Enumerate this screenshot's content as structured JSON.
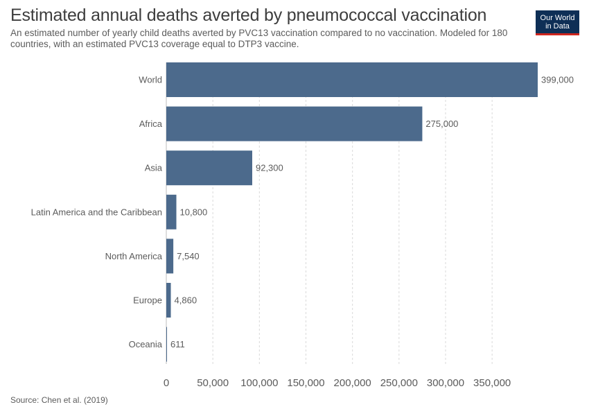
{
  "header": {
    "title": "Estimated annual deaths averted by pneumococcal vaccination",
    "subtitle": "An estimated number of yearly child deaths averted by PVC13 vaccination compared to no vaccination. Modeled for 180 countries, with an estimated PVC13 coverage equal to DTP3 vaccine."
  },
  "logo": {
    "line1": "Our World",
    "line2": "in Data",
    "bg_color": "#0e2f56",
    "accent_color": "#ce261e"
  },
  "footer": {
    "source": "Source: Chen et al. (2019)"
  },
  "chart_data": {
    "type": "bar",
    "orientation": "horizontal",
    "title": "Estimated annual deaths averted by pneumococcal vaccination",
    "xlabel": "",
    "ylabel": "",
    "categories": [
      "World",
      "Africa",
      "Asia",
      "Latin America and the Caribbean",
      "North America",
      "Europe",
      "Oceania"
    ],
    "values": [
      399000,
      275000,
      92300,
      10800,
      7540,
      4860,
      611
    ],
    "value_labels": [
      "399,000",
      "275,000",
      "92,300",
      "10,800",
      "7,540",
      "4,860",
      "611"
    ],
    "xlim": [
      0,
      399000
    ],
    "x_ticks": [
      0,
      50000,
      100000,
      150000,
      200000,
      250000,
      300000,
      350000
    ],
    "x_tick_labels": [
      "0",
      "50,000",
      "100,000",
      "150,000",
      "200,000",
      "250,000",
      "300,000",
      "350,000"
    ],
    "grid": "vertical dashed",
    "bar_color": "#4c6a8c"
  }
}
